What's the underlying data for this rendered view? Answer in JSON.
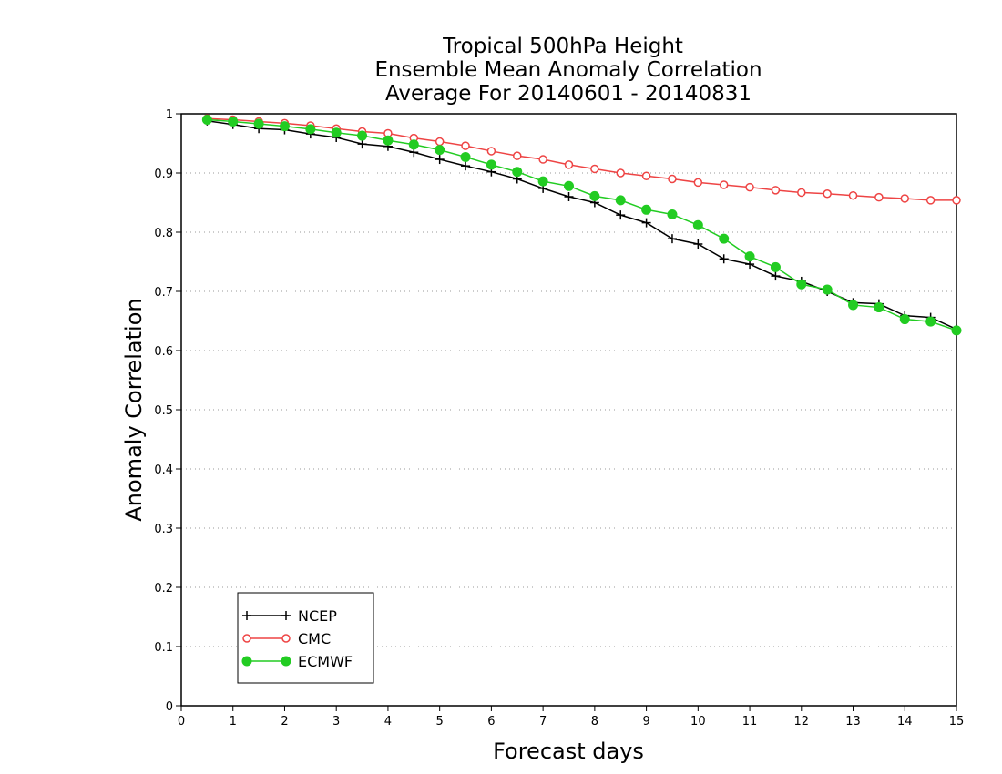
{
  "chart_data": {
    "type": "line",
    "title_lines": [
      "Tropical 500hPa Height",
      "Ensemble Mean Anomaly Correlation",
      "Average For 20140601 - 20140831"
    ],
    "xlabel": "Forecast days",
    "ylabel": "Anomaly Correlation",
    "xlim": [
      0,
      15
    ],
    "ylim": [
      0,
      1
    ],
    "xticks": [
      "0",
      "1",
      "2",
      "3",
      "4",
      "5",
      "6",
      "7",
      "8",
      "9",
      "10",
      "11",
      "12",
      "13",
      "14",
      "15"
    ],
    "yticks": [
      "0",
      "0.1",
      "0.2",
      "0.3",
      "0.4",
      "0.5",
      "0.6",
      "0.7",
      "0.8",
      "0.9",
      "1"
    ],
    "grid": true,
    "legend_position": "bottom-left",
    "x": [
      0.5,
      1,
      1.5,
      2,
      2.5,
      3,
      3.5,
      4,
      4.5,
      5,
      5.5,
      6,
      6.5,
      7,
      7.5,
      8,
      8.5,
      9,
      9.5,
      10,
      10.5,
      11,
      11.5,
      12,
      12.5,
      13,
      13.5,
      14,
      14.5,
      15
    ],
    "series": [
      {
        "name": "NCEP",
        "color": "#000000",
        "marker": "plus",
        "values": [
          0.988,
          0.982,
          0.975,
          0.973,
          0.966,
          0.96,
          0.949,
          0.945,
          0.935,
          0.923,
          0.912,
          0.902,
          0.89,
          0.874,
          0.86,
          0.85,
          0.829,
          0.816,
          0.789,
          0.78,
          0.755,
          0.746,
          0.726,
          0.717,
          0.7,
          0.681,
          0.679,
          0.659,
          0.656,
          0.636
        ]
      },
      {
        "name": "CMC",
        "color": "#ee4444",
        "marker": "open-circle",
        "values": [
          0.992,
          0.99,
          0.987,
          0.984,
          0.98,
          0.975,
          0.97,
          0.967,
          0.959,
          0.953,
          0.946,
          0.937,
          0.929,
          0.923,
          0.914,
          0.907,
          0.9,
          0.895,
          0.89,
          0.884,
          0.88,
          0.876,
          0.871,
          0.867,
          0.865,
          0.862,
          0.859,
          0.857,
          0.854,
          0.854
        ]
      },
      {
        "name": "ECMWF",
        "color": "#22cc22",
        "marker": "filled-circle",
        "values": [
          0.99,
          0.987,
          0.983,
          0.979,
          0.974,
          0.968,
          0.963,
          0.955,
          0.948,
          0.939,
          0.927,
          0.914,
          0.902,
          0.886,
          0.878,
          0.861,
          0.854,
          0.838,
          0.83,
          0.812,
          0.789,
          0.759,
          0.741,
          0.712,
          0.703,
          0.677,
          0.673,
          0.653,
          0.649,
          0.634
        ]
      }
    ]
  }
}
